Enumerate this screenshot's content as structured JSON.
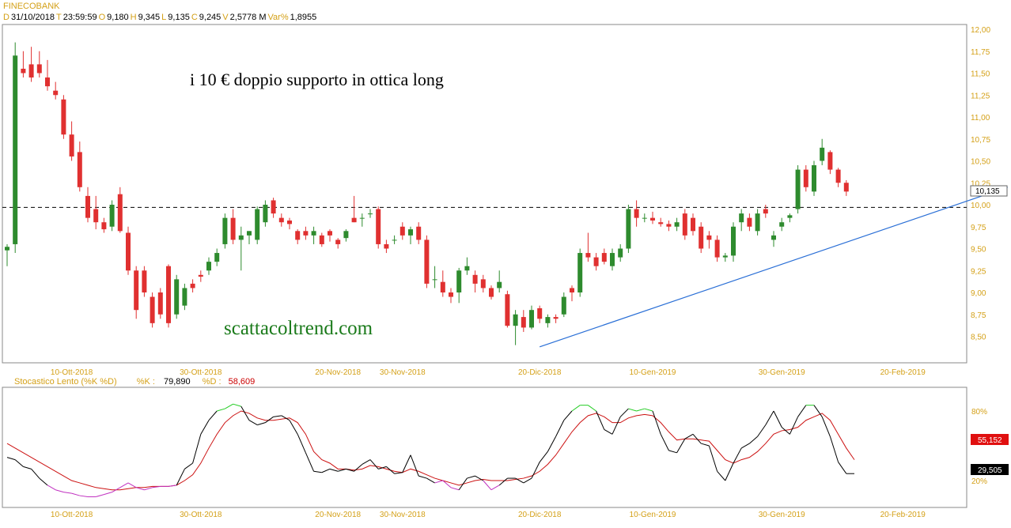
{
  "header": {
    "symbol": "FINECOBANK",
    "fields": [
      {
        "key": "D",
        "value": "31/10/2018"
      },
      {
        "key": "T",
        "value": "23:59:59"
      },
      {
        "key": "O",
        "value": "9,180"
      },
      {
        "key": "H",
        "value": "9,345"
      },
      {
        "key": "L",
        "value": "9,135"
      },
      {
        "key": "C",
        "value": "9,245"
      },
      {
        "key": "V",
        "value": "2,5778 M"
      },
      {
        "key": "Var%",
        "value": "1,8955"
      }
    ]
  },
  "annotations": {
    "title_text": "i 10 € doppio supporto in ottica long",
    "watermark": "scattacoltrend.com"
  },
  "price_label": "10,135",
  "stochastic": {
    "name": "Stocastico Lento (%K %D)",
    "k_label": "%K :",
    "k_value": "79,890",
    "d_label": "%D :",
    "d_value": "58,609",
    "badge_d": "55,152",
    "badge_k": "29,505"
  },
  "colors": {
    "up": "#2e8b2e",
    "down": "#e03030",
    "trendline": "#2a6fd6",
    "k_line": "#000000",
    "d_line": "#cc1111",
    "overbought": "#22cc22",
    "oversold": "#c030c0",
    "axis_text": "#d4a017"
  },
  "chart_data": [
    {
      "type": "candlestick",
      "y_ticks": [
        "12,00",
        "11,75",
        "11,50",
        "11,25",
        "11,00",
        "10,75",
        "10,50",
        "10,25",
        "10,00",
        "9,75",
        "9,50",
        "9,25",
        "9,00",
        "8,75",
        "8,50"
      ],
      "ylim": [
        8.35,
        12.05
      ],
      "x_labels": [
        "10-Ott-2018",
        "30-Ott-2018",
        "20-Nov-2018",
        "30-Nov-2018",
        "20-Dic-2018",
        "10-Gen-2019",
        "30-Gen-2019",
        "20-Feb-2019"
      ],
      "x_label_index": [
        8,
        24,
        41,
        49,
        66,
        80,
        96,
        111
      ],
      "horizontal_level": 9.97,
      "trendline": {
        "start": {
          "index": 66,
          "value": 8.38
        },
        "end": {
          "index": 124,
          "value": 10.2
        }
      },
      "ohlc": [
        [
          9.48,
          9.55,
          9.3,
          9.52
        ],
        [
          9.55,
          11.85,
          9.45,
          11.7
        ],
        [
          11.55,
          11.75,
          11.45,
          11.5
        ],
        [
          11.6,
          11.8,
          11.4,
          11.45
        ],
        [
          11.6,
          11.75,
          11.45,
          11.5
        ],
        [
          11.45,
          11.65,
          11.3,
          11.35
        ],
        [
          11.3,
          11.4,
          11.2,
          11.25
        ],
        [
          11.2,
          11.25,
          10.75,
          10.8
        ],
        [
          10.8,
          10.95,
          10.5,
          10.55
        ],
        [
          10.6,
          10.72,
          10.15,
          10.2
        ],
        [
          10.1,
          10.2,
          9.8,
          9.85
        ],
        [
          9.95,
          10.1,
          9.72,
          9.8
        ],
        [
          9.8,
          9.85,
          9.68,
          9.72
        ],
        [
          9.75,
          10.05,
          9.7,
          10.0
        ],
        [
          10.12,
          10.2,
          9.68,
          9.7
        ],
        [
          9.68,
          9.75,
          9.2,
          9.25
        ],
        [
          9.25,
          9.3,
          8.7,
          8.8
        ],
        [
          9.25,
          9.3,
          8.95,
          9.0
        ],
        [
          8.95,
          9.0,
          8.6,
          8.65
        ],
        [
          9.0,
          9.05,
          8.7,
          8.75
        ],
        [
          9.3,
          9.32,
          8.6,
          8.65
        ],
        [
          8.75,
          9.2,
          8.7,
          9.15
        ],
        [
          8.85,
          9.1,
          8.8,
          9.05
        ],
        [
          9.1,
          9.15,
          9.0,
          9.05
        ],
        [
          9.2,
          9.25,
          9.12,
          9.18
        ],
        [
          9.25,
          9.4,
          9.2,
          9.35
        ],
        [
          9.35,
          9.5,
          9.3,
          9.45
        ],
        [
          9.55,
          9.9,
          9.5,
          9.85
        ],
        [
          9.85,
          9.95,
          9.55,
          9.6
        ],
        [
          9.6,
          9.75,
          9.25,
          9.65
        ],
        [
          9.65,
          9.7,
          9.55,
          9.7
        ],
        [
          9.6,
          9.98,
          9.55,
          9.95
        ],
        [
          9.8,
          10.05,
          9.75,
          10.0
        ],
        [
          10.05,
          10.08,
          9.85,
          9.9
        ],
        [
          9.85,
          9.9,
          9.75,
          9.8
        ],
        [
          9.82,
          9.85,
          9.72,
          9.78
        ],
        [
          9.7,
          9.72,
          9.55,
          9.6
        ],
        [
          9.7,
          9.75,
          9.6,
          9.65
        ],
        [
          9.65,
          9.75,
          9.55,
          9.7
        ],
        [
          9.65,
          9.68,
          9.52,
          9.55
        ],
        [
          9.7,
          9.72,
          9.58,
          9.65
        ],
        [
          9.6,
          9.62,
          9.5,
          9.55
        ],
        [
          9.62,
          9.72,
          9.58,
          9.7
        ],
        [
          9.85,
          10.1,
          9.8,
          9.8
        ],
        [
          9.85,
          9.9,
          9.75,
          9.85
        ],
        [
          9.9,
          9.95,
          9.85,
          9.9
        ],
        [
          9.95,
          9.98,
          9.5,
          9.55
        ],
        [
          9.55,
          9.6,
          9.45,
          9.5
        ],
        [
          9.6,
          9.65,
          9.55,
          9.6
        ],
        [
          9.75,
          9.8,
          9.6,
          9.65
        ],
        [
          9.65,
          9.75,
          9.55,
          9.72
        ],
        [
          9.75,
          9.8,
          9.55,
          9.6
        ],
        [
          9.6,
          9.65,
          9.05,
          9.1
        ],
        [
          9.15,
          9.3,
          9.05,
          9.15
        ],
        [
          9.12,
          9.25,
          8.95,
          9.0
        ],
        [
          9.0,
          9.05,
          8.88,
          8.95
        ],
        [
          9.0,
          9.28,
          8.88,
          9.25
        ],
        [
          9.25,
          9.4,
          9.2,
          9.3
        ],
        [
          9.2,
          9.25,
          9.0,
          9.1
        ],
        [
          9.15,
          9.2,
          9.0,
          9.05
        ],
        [
          9.05,
          9.08,
          8.92,
          8.95
        ],
        [
          9.05,
          9.25,
          9.0,
          9.12
        ],
        [
          8.98,
          9.02,
          8.6,
          8.62
        ],
        [
          8.62,
          8.8,
          8.4,
          8.75
        ],
        [
          8.72,
          8.8,
          8.55,
          8.6
        ],
        [
          8.6,
          8.85,
          8.58,
          8.8
        ],
        [
          8.82,
          8.85,
          8.65,
          8.7
        ],
        [
          8.65,
          8.75,
          8.6,
          8.72
        ],
        [
          8.72,
          8.75,
          8.65,
          8.7
        ],
        [
          8.75,
          9.0,
          8.72,
          8.95
        ],
        [
          9.05,
          9.08,
          8.9,
          9.0
        ],
        [
          9.0,
          9.5,
          8.95,
          9.45
        ],
        [
          9.45,
          9.68,
          9.35,
          9.4
        ],
        [
          9.4,
          9.45,
          9.25,
          9.3
        ],
        [
          9.45,
          9.5,
          9.32,
          9.35
        ],
        [
          9.3,
          9.5,
          9.25,
          9.45
        ],
        [
          9.4,
          9.55,
          9.35,
          9.5
        ],
        [
          9.5,
          10.0,
          9.45,
          9.95
        ],
        [
          9.95,
          10.05,
          9.75,
          9.85
        ],
        [
          9.85,
          9.9,
          9.8,
          9.85
        ],
        [
          9.85,
          9.92,
          9.78,
          9.82
        ],
        [
          9.8,
          9.85,
          9.75,
          9.78
        ],
        [
          9.78,
          9.82,
          9.7,
          9.75
        ],
        [
          9.75,
          9.85,
          9.7,
          9.8
        ],
        [
          9.9,
          9.95,
          9.6,
          9.65
        ],
        [
          9.85,
          9.9,
          9.65,
          9.7
        ],
        [
          9.75,
          9.8,
          9.45,
          9.5
        ],
        [
          9.65,
          9.7,
          9.5,
          9.6
        ],
        [
          9.6,
          9.65,
          9.35,
          9.4
        ],
        [
          9.4,
          9.45,
          9.35,
          9.42
        ],
        [
          9.42,
          9.8,
          9.35,
          9.75
        ],
        [
          9.8,
          9.95,
          9.7,
          9.9
        ],
        [
          9.85,
          9.9,
          9.7,
          9.75
        ],
        [
          9.7,
          9.95,
          9.65,
          9.9
        ],
        [
          9.95,
          10.0,
          9.85,
          9.9
        ],
        [
          9.6,
          9.7,
          9.52,
          9.65
        ],
        [
          9.75,
          9.85,
          9.7,
          9.8
        ],
        [
          9.85,
          9.9,
          9.8,
          9.88
        ],
        [
          9.95,
          10.45,
          9.9,
          10.4
        ],
        [
          10.4,
          10.45,
          10.15,
          10.2
        ],
        [
          10.15,
          10.5,
          10.1,
          10.45
        ],
        [
          10.5,
          10.75,
          10.45,
          10.65
        ],
        [
          10.6,
          10.62,
          10.35,
          10.4
        ],
        [
          10.4,
          10.42,
          10.2,
          10.25
        ],
        [
          10.25,
          10.28,
          10.1,
          10.15
        ]
      ]
    },
    {
      "type": "line",
      "name": "Stocastico Lento (%K %D)",
      "y_ticks": [
        "80%",
        "20%"
      ],
      "ylim": [
        0,
        100
      ],
      "series": [
        {
          "name": "%K",
          "values": [
            40,
            38,
            32,
            30,
            22,
            16,
            12,
            10,
            9,
            7,
            6,
            6,
            8,
            10,
            14,
            18,
            14,
            12,
            14,
            15,
            15,
            16,
            30,
            35,
            60,
            72,
            80,
            82,
            86,
            84,
            72,
            68,
            70,
            75,
            76,
            72,
            60,
            44,
            28,
            27,
            30,
            28,
            30,
            28,
            34,
            38,
            30,
            32,
            26,
            27,
            42,
            24,
            22,
            18,
            20,
            14,
            12,
            22,
            24,
            20,
            12,
            16,
            22,
            22,
            18,
            22,
            36,
            45,
            58,
            72,
            80,
            85,
            85,
            80,
            64,
            60,
            75,
            82,
            80,
            82,
            80,
            60,
            46,
            44,
            56,
            60,
            52,
            50,
            28,
            20,
            35,
            48,
            52,
            58,
            68,
            80,
            66,
            60,
            75,
            85,
            85,
            75,
            58,
            36,
            26,
            26
          ]
        },
        {
          "name": "%D",
          "values": [
            52,
            48,
            44,
            40,
            36,
            32,
            28,
            24,
            20,
            18,
            16,
            14,
            13,
            12,
            12,
            13,
            14,
            14,
            15,
            15,
            15,
            16,
            20,
            25,
            35,
            48,
            60,
            70,
            76,
            80,
            78,
            74,
            72,
            72,
            73,
            74,
            70,
            60,
            45,
            38,
            35,
            30,
            30,
            29,
            30,
            33,
            32,
            30,
            28,
            27,
            30,
            28,
            25,
            22,
            20,
            18,
            16,
            18,
            20,
            21,
            20,
            20,
            20,
            21,
            22,
            24,
            28,
            34,
            42,
            52,
            62,
            70,
            76,
            78,
            75,
            70,
            70,
            74,
            76,
            77,
            76,
            70,
            62,
            55,
            56,
            56,
            55,
            54,
            46,
            38,
            35,
            38,
            40,
            45,
            52,
            60,
            63,
            64,
            66,
            72,
            75,
            78,
            72,
            60,
            48,
            38
          ]
        }
      ]
    }
  ]
}
